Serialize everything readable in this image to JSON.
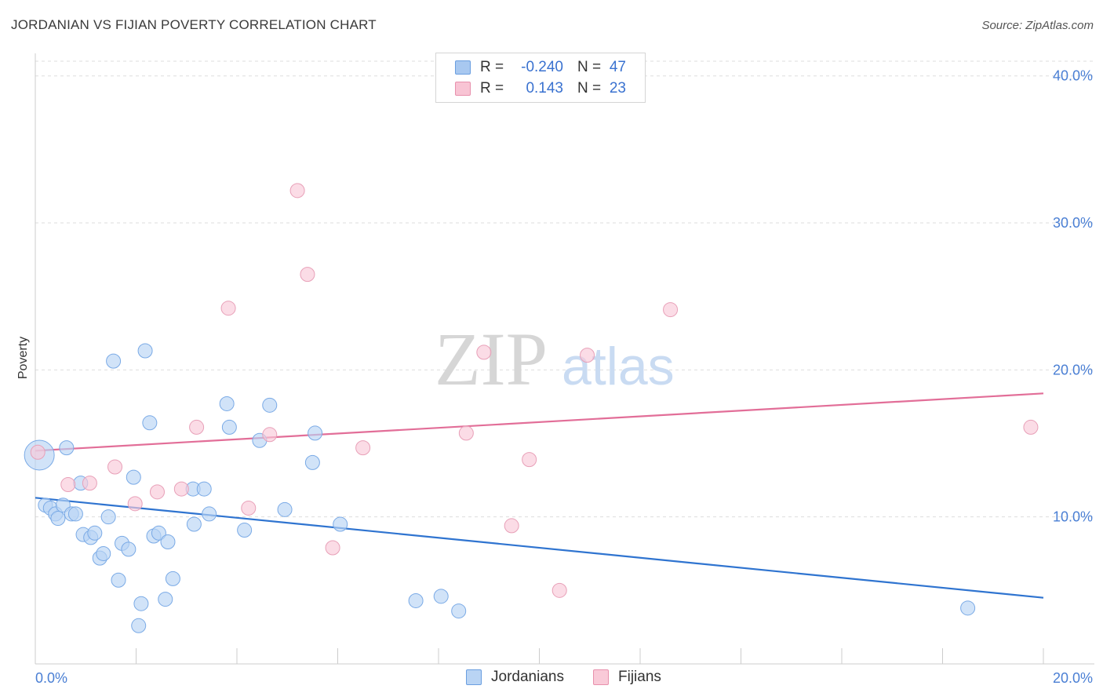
{
  "title": "JORDANIAN VS FIJIAN POVERTY CORRELATION CHART",
  "source": "Source: ZipAtlas.com",
  "watermark": {
    "zip": "ZIP",
    "atlas": "atlas"
  },
  "stats": [
    {
      "r_label": "R =",
      "r_value": "-0.240",
      "n_label": "N =",
      "n_value": "47",
      "color": "#a8c8f0",
      "border": "#6a9ee0"
    },
    {
      "r_label": "R =",
      "r_value": "0.143",
      "n_label": "N =",
      "n_value": "23",
      "color": "#f8c4d4",
      "border": "#e890ac"
    }
  ],
  "legend": [
    {
      "label": "Jordanians",
      "color": "#b9d4f4",
      "border": "#6a9ee0"
    },
    {
      "label": "Fijians",
      "color": "#f9cad8",
      "border": "#e890ac"
    }
  ],
  "chart_data": {
    "type": "scatter",
    "title": "JORDANIAN VS FIJIAN POVERTY CORRELATION CHART",
    "xlabel": "",
    "ylabel": "Poverty",
    "xlim": [
      0,
      20
    ],
    "ylim": [
      0,
      41
    ],
    "x_tick_labels": [
      "0.0%",
      "20.0%"
    ],
    "y_ticks": [
      10,
      20,
      30,
      40
    ],
    "y_tick_labels": [
      "10.0%",
      "20.0%",
      "30.0%",
      "40.0%"
    ],
    "grid": true,
    "legend_position": "bottom",
    "series": [
      {
        "name": "Jordanians",
        "color": "#7aaae6",
        "fill": "#b9d4f4",
        "line_color": "#2f74d0",
        "trend": {
          "x": [
            0,
            20
          ],
          "y": [
            11.3,
            4.5
          ]
        },
        "points": [
          [
            0.08,
            14.2,
            "large"
          ],
          [
            0.2,
            10.8
          ],
          [
            0.3,
            10.6
          ],
          [
            0.4,
            10.2
          ],
          [
            0.45,
            9.9
          ],
          [
            0.55,
            10.8
          ],
          [
            0.62,
            14.7
          ],
          [
            0.72,
            10.2
          ],
          [
            0.8,
            10.2
          ],
          [
            0.9,
            12.3
          ],
          [
            0.95,
            8.8
          ],
          [
            1.1,
            8.6
          ],
          [
            1.18,
            8.9
          ],
          [
            1.28,
            7.2
          ],
          [
            1.35,
            7.5
          ],
          [
            1.45,
            10.0
          ],
          [
            1.55,
            20.6
          ],
          [
            1.65,
            5.7
          ],
          [
            1.72,
            8.2
          ],
          [
            1.85,
            7.8
          ],
          [
            1.95,
            12.7
          ],
          [
            2.05,
            2.6
          ],
          [
            2.1,
            4.1
          ],
          [
            2.18,
            21.3
          ],
          [
            2.27,
            16.4
          ],
          [
            2.35,
            8.7
          ],
          [
            2.45,
            8.9
          ],
          [
            2.58,
            4.4
          ],
          [
            2.63,
            8.3
          ],
          [
            2.73,
            5.8
          ],
          [
            3.15,
            9.5
          ],
          [
            3.13,
            11.9
          ],
          [
            3.35,
            11.9
          ],
          [
            3.45,
            10.2
          ],
          [
            3.8,
            17.7
          ],
          [
            3.85,
            16.1
          ],
          [
            4.15,
            9.1
          ],
          [
            4.45,
            15.2
          ],
          [
            4.65,
            17.6
          ],
          [
            4.95,
            10.5
          ],
          [
            5.5,
            13.7
          ],
          [
            5.55,
            15.7
          ],
          [
            6.05,
            9.5
          ],
          [
            7.55,
            4.3
          ],
          [
            8.05,
            4.6
          ],
          [
            8.4,
            3.6
          ],
          [
            18.5,
            3.8
          ]
        ]
      },
      {
        "name": "Fijians",
        "color": "#e8a0b8",
        "fill": "#f9cad8",
        "line_color": "#e26e98",
        "trend": {
          "x": [
            0,
            20
          ],
          "y": [
            14.5,
            18.4
          ]
        },
        "points": [
          [
            0.05,
            14.4
          ],
          [
            0.65,
            12.2
          ],
          [
            1.08,
            12.3
          ],
          [
            1.58,
            13.4
          ],
          [
            1.98,
            10.9
          ],
          [
            2.42,
            11.7
          ],
          [
            2.9,
            11.9
          ],
          [
            3.2,
            16.1
          ],
          [
            3.83,
            24.2
          ],
          [
            4.23,
            10.6
          ],
          [
            4.65,
            15.6
          ],
          [
            5.2,
            32.2
          ],
          [
            5.4,
            26.5
          ],
          [
            5.9,
            7.9
          ],
          [
            6.5,
            14.7
          ],
          [
            8.55,
            15.7
          ],
          [
            8.9,
            21.2
          ],
          [
            9.45,
            9.4
          ],
          [
            9.8,
            13.9
          ],
          [
            10.4,
            5.0
          ],
          [
            10.95,
            21.0
          ],
          [
            12.6,
            24.1
          ],
          [
            19.75,
            16.1
          ]
        ]
      }
    ]
  }
}
